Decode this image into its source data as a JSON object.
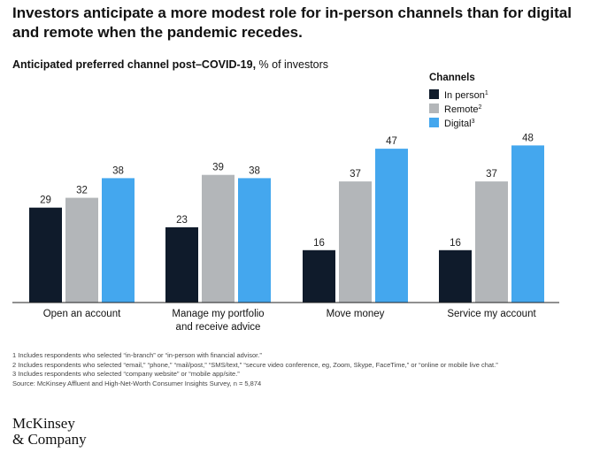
{
  "headline": "Investors anticipate a more modest role for in-person channels than for digital and remote when the pandemic recedes.",
  "subtitle_bold": "Anticipated preferred channel post–COVID-19,",
  "subtitle_rest": " % of investors",
  "colors": {
    "In person": "#0f1b2b",
    "Remote": "#b3b6b9",
    "Digital": "#44a7ee",
    "axis": "#222222"
  },
  "chart_data": {
    "type": "bar",
    "title": "Anticipated preferred channel post–COVID-19, % of investors",
    "categories": [
      "Open an account",
      "Manage my portfolio\nand receive advice",
      "Move money",
      "Service my account"
    ],
    "series": [
      {
        "name": "In person",
        "sup": "1",
        "values": [
          29,
          23,
          16,
          16
        ]
      },
      {
        "name": "Remote",
        "sup": "2",
        "values": [
          32,
          39,
          37,
          37
        ]
      },
      {
        "name": "Digital",
        "sup": "3",
        "values": [
          38,
          38,
          47,
          48
        ]
      }
    ],
    "legend_title": "Channels",
    "legend_position": "top-right",
    "ylim": [
      0,
      48
    ],
    "grid": false,
    "data_labels": true
  },
  "footnotes": [
    "1 Includes respondents who selected “in-branch” or “in-person with financial advisor.”",
    "2 Includes respondents who selected “email,” “phone,” “mail/post,” “SMS/text,” “secure video conference, eg, Zoom, Skype, FaceTime,” or “online or mobile live chat.”",
    "3 Includes respondents who selected “company website” or “mobile app/site.”",
    "Source: McKinsey Affluent and High-Net-Worth Consumer Insights Survey, n = 5,874"
  ],
  "logo_line1": "McKinsey",
  "logo_line2": "& Company"
}
